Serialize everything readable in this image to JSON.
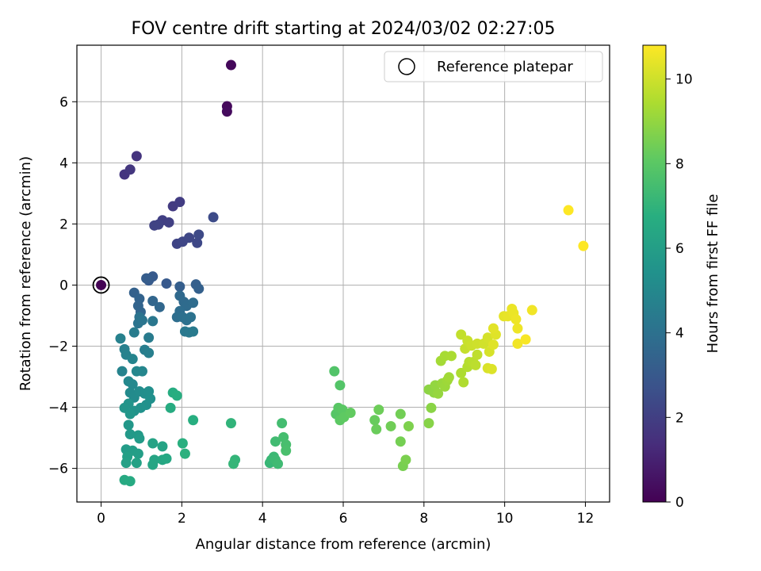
{
  "chart_data": {
    "type": "scatter",
    "title": "FOV centre drift starting at 2024/03/02 02:27:05",
    "xlabel": "Angular distance from reference (arcmin)",
    "ylabel": "Rotation from reference (arcmin)",
    "xlim": [
      -0.6,
      12.6
    ],
    "ylim": [
      -7.1,
      7.85
    ],
    "xticks": [
      0,
      2,
      4,
      6,
      8,
      10,
      12
    ],
    "yticks": [
      -6,
      -4,
      -2,
      0,
      2,
      4,
      6
    ],
    "grid": true,
    "colormap": "viridis",
    "colorbar": {
      "label": "Hours from first FF file",
      "range": [
        0,
        10.8
      ],
      "ticks": [
        0,
        2,
        4,
        6,
        8,
        10
      ]
    },
    "legend": {
      "position": "top-right",
      "entries": [
        "Reference platepar"
      ]
    },
    "reference_point": {
      "x": 0,
      "y": 0
    },
    "points": [
      [
        0,
        0,
        0.05
      ],
      [
        3.22,
        7.2,
        0.2
      ],
      [
        3.12,
        5.85,
        0.25
      ],
      [
        3.12,
        5.68,
        0.3
      ],
      [
        0.88,
        4.22,
        1.6
      ],
      [
        0.58,
        3.62,
        1.65
      ],
      [
        0.72,
        3.78,
        1.7
      ],
      [
        1.78,
        2.58,
        1.85
      ],
      [
        1.95,
        2.72,
        1.9
      ],
      [
        1.52,
        2.12,
        2.0
      ],
      [
        1.68,
        2.05,
        2.05
      ],
      [
        1.42,
        1.98,
        2.1
      ],
      [
        1.32,
        1.95,
        2.15
      ],
      [
        1.88,
        1.35,
        2.2
      ],
      [
        2.02,
        1.42,
        2.25
      ],
      [
        2.18,
        1.55,
        2.3
      ],
      [
        2.38,
        1.38,
        2.35
      ],
      [
        2.42,
        1.65,
        2.4
      ],
      [
        2.78,
        2.22,
        2.45
      ],
      [
        1.62,
        0.05,
        3.0
      ],
      [
        1.28,
        0.28,
        3.05
      ],
      [
        1.18,
        0.15,
        3.1
      ],
      [
        1.12,
        0.22,
        3.15
      ],
      [
        1.95,
        -0.05,
        3.2
      ],
      [
        2.35,
        0.02,
        3.25
      ],
      [
        2.42,
        -0.12,
        3.3
      ],
      [
        0.82,
        -0.25,
        3.35
      ],
      [
        0.95,
        -0.45,
        3.4
      ],
      [
        0.92,
        -0.68,
        3.45
      ],
      [
        0.98,
        -0.88,
        3.5
      ],
      [
        1.28,
        -0.52,
        3.55
      ],
      [
        1.45,
        -0.72,
        3.6
      ],
      [
        1.95,
        -0.35,
        3.65
      ],
      [
        2.05,
        -0.55,
        3.7
      ],
      [
        2.12,
        -0.68,
        3.75
      ],
      [
        2.28,
        -0.58,
        3.8
      ],
      [
        1.95,
        -0.85,
        3.85
      ],
      [
        1.88,
        -1.05,
        3.9
      ],
      [
        2.02,
        -1.05,
        3.95
      ],
      [
        2.12,
        -1.15,
        4.0
      ],
      [
        2.22,
        -1.05,
        4.05
      ],
      [
        0.95,
        -1.05,
        4.1
      ],
      [
        0.92,
        -1.25,
        4.15
      ],
      [
        1.02,
        -1.15,
        4.2
      ],
      [
        1.28,
        -1.18,
        4.25
      ],
      [
        2.08,
        -1.52,
        4.3
      ],
      [
        2.18,
        -1.55,
        4.35
      ],
      [
        2.28,
        -1.52,
        4.4
      ],
      [
        1.18,
        -1.72,
        4.45
      ],
      [
        0.82,
        -1.55,
        4.5
      ],
      [
        1.08,
        -2.12,
        4.55
      ],
      [
        1.18,
        -2.22,
        4.6
      ],
      [
        0.58,
        -2.1,
        4.65
      ],
      [
        0.48,
        -1.75,
        4.7
      ],
      [
        0.62,
        -2.28,
        4.75
      ],
      [
        0.52,
        -2.82,
        4.8
      ],
      [
        0.78,
        -2.42,
        4.85
      ],
      [
        1.02,
        -2.82,
        4.9
      ],
      [
        0.88,
        -2.82,
        4.95
      ],
      [
        0.68,
        -3.15,
        5.0
      ],
      [
        0.78,
        -3.25,
        5.05
      ],
      [
        0.72,
        -3.52,
        5.1
      ],
      [
        0.82,
        -3.68,
        5.15
      ],
      [
        0.95,
        -3.48,
        5.2
      ],
      [
        1.08,
        -3.55,
        5.25
      ],
      [
        1.18,
        -3.48,
        5.3
      ],
      [
        1.22,
        -3.72,
        5.35
      ],
      [
        1.12,
        -3.92,
        5.4
      ],
      [
        0.98,
        -4.02,
        5.45
      ],
      [
        0.82,
        -4.12,
        5.5
      ],
      [
        0.68,
        -3.88,
        5.55
      ],
      [
        0.58,
        -4.02,
        5.6
      ],
      [
        0.72,
        -4.22,
        5.65
      ],
      [
        0.68,
        -4.58,
        5.7
      ],
      [
        0.72,
        -4.88,
        5.75
      ],
      [
        0.92,
        -4.92,
        5.8
      ],
      [
        0.95,
        -5.02,
        5.85
      ],
      [
        0.62,
        -5.38,
        5.9
      ],
      [
        0.78,
        -5.42,
        5.95
      ],
      [
        0.92,
        -5.52,
        6.0
      ],
      [
        0.65,
        -5.62,
        6.05
      ],
      [
        0.62,
        -5.82,
        6.1
      ],
      [
        0.88,
        -5.82,
        6.15
      ],
      [
        1.28,
        -5.18,
        6.2
      ],
      [
        1.52,
        -5.28,
        6.25
      ],
      [
        1.32,
        -5.72,
        6.3
      ],
      [
        1.28,
        -5.88,
        6.35
      ],
      [
        1.52,
        -5.72,
        6.4
      ],
      [
        1.62,
        -5.68,
        6.45
      ],
      [
        0.58,
        -6.38,
        6.5
      ],
      [
        0.72,
        -6.42,
        6.55
      ],
      [
        1.72,
        -4.02,
        6.6
      ],
      [
        1.78,
        -3.52,
        6.65
      ],
      [
        1.88,
        -3.62,
        6.7
      ],
      [
        2.28,
        -4.42,
        6.75
      ],
      [
        2.02,
        -5.18,
        6.8
      ],
      [
        2.08,
        -5.52,
        6.85
      ],
      [
        3.22,
        -4.52,
        7.0
      ],
      [
        3.32,
        -5.72,
        7.05
      ],
      [
        3.28,
        -5.85,
        7.1
      ],
      [
        4.18,
        -5.82,
        7.15
      ],
      [
        4.22,
        -5.72,
        7.2
      ],
      [
        4.28,
        -5.62,
        7.25
      ],
      [
        4.32,
        -5.72,
        7.3
      ],
      [
        4.38,
        -5.85,
        7.35
      ],
      [
        4.32,
        -5.12,
        7.4
      ],
      [
        4.48,
        -4.52,
        7.45
      ],
      [
        4.52,
        -4.98,
        7.5
      ],
      [
        4.58,
        -5.22,
        7.55
      ],
      [
        4.58,
        -5.42,
        7.6
      ],
      [
        5.78,
        -2.82,
        7.8
      ],
      [
        5.92,
        -3.28,
        7.85
      ],
      [
        5.82,
        -4.22,
        7.9
      ],
      [
        5.88,
        -4.02,
        7.95
      ],
      [
        5.98,
        -4.08,
        8.0
      ],
      [
        5.92,
        -4.42,
        8.05
      ],
      [
        6.02,
        -4.32,
        8.1
      ],
      [
        6.18,
        -4.18,
        8.15
      ],
      [
        6.78,
        -4.42,
        8.25
      ],
      [
        6.82,
        -4.72,
        8.3
      ],
      [
        6.88,
        -4.08,
        8.35
      ],
      [
        7.18,
        -4.62,
        8.4
      ],
      [
        7.42,
        -4.22,
        8.45
      ],
      [
        7.42,
        -5.12,
        8.5
      ],
      [
        7.48,
        -5.92,
        8.55
      ],
      [
        7.55,
        -5.72,
        8.6
      ],
      [
        7.62,
        -4.62,
        8.65
      ],
      [
        8.12,
        -4.52,
        8.8
      ],
      [
        8.18,
        -4.02,
        8.85
      ],
      [
        8.12,
        -3.42,
        8.9
      ],
      [
        8.25,
        -3.52,
        8.95
      ],
      [
        8.28,
        -3.28,
        9.0
      ],
      [
        8.35,
        -3.55,
        9.05
      ],
      [
        8.45,
        -3.22,
        9.1
      ],
      [
        8.52,
        -3.32,
        9.15
      ],
      [
        8.58,
        -3.12,
        9.2
      ],
      [
        8.62,
        -3.02,
        9.25
      ],
      [
        8.42,
        -2.48,
        9.3
      ],
      [
        8.52,
        -2.32,
        9.35
      ],
      [
        8.68,
        -2.32,
        9.4
      ],
      [
        8.92,
        -2.88,
        9.45
      ],
      [
        8.98,
        -3.18,
        9.5
      ],
      [
        9.08,
        -2.68,
        9.55
      ],
      [
        9.12,
        -2.52,
        9.6
      ],
      [
        9.22,
        -2.52,
        9.65
      ],
      [
        9.28,
        -2.62,
        9.7
      ],
      [
        9.32,
        -2.28,
        9.75
      ],
      [
        8.92,
        -1.62,
        9.8
      ],
      [
        9.02,
        -2.08,
        9.85
      ],
      [
        9.08,
        -1.82,
        9.9
      ],
      [
        9.18,
        -1.98,
        9.95
      ],
      [
        9.32,
        -1.92,
        10.0
      ],
      [
        9.48,
        -1.92,
        10.05
      ],
      [
        9.58,
        -1.72,
        10.1
      ],
      [
        9.62,
        -2.18,
        10.15
      ],
      [
        9.58,
        -2.72,
        10.2
      ],
      [
        9.68,
        -2.75,
        10.25
      ],
      [
        9.72,
        -1.95,
        10.3
      ],
      [
        9.78,
        -1.62,
        10.3
      ],
      [
        9.72,
        -1.42,
        10.35
      ],
      [
        9.98,
        -1.02,
        10.4
      ],
      [
        10.08,
        -1.02,
        10.45
      ],
      [
        10.18,
        -0.78,
        10.5
      ],
      [
        10.22,
        -0.92,
        10.5
      ],
      [
        10.28,
        -1.12,
        10.55
      ],
      [
        10.32,
        -1.42,
        10.55
      ],
      [
        10.32,
        -1.92,
        10.6
      ],
      [
        10.68,
        -0.82,
        10.6
      ],
      [
        10.52,
        -1.78,
        10.7
      ],
      [
        11.58,
        2.45,
        10.8
      ],
      [
        11.95,
        1.28,
        10.8
      ]
    ]
  }
}
